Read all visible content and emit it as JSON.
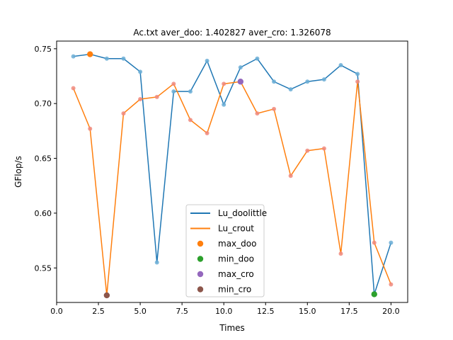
{
  "chart_data": {
    "type": "line",
    "title": "Ac.txt aver_doo: 1.402827 aver_cro: 1.326078",
    "xlabel": "Times",
    "ylabel": "GFlop/s",
    "xlim": [
      0,
      21
    ],
    "ylim": [
      0.5185,
      0.757
    ],
    "xticks": [
      0.0,
      2.5,
      5.0,
      7.5,
      10.0,
      12.5,
      15.0,
      17.5,
      20.0
    ],
    "xtick_labels": [
      "0.0",
      "2.5",
      "5.0",
      "7.5",
      "10.0",
      "12.5",
      "15.0",
      "17.5",
      "20.0"
    ],
    "yticks": [
      0.55,
      0.6,
      0.65,
      0.7,
      0.75
    ],
    "ytick_labels": [
      "0.55",
      "0.60",
      "0.65",
      "0.70",
      "0.75"
    ],
    "grid": false,
    "legend_position": "lower center",
    "x": [
      1,
      2,
      3,
      4,
      5,
      6,
      7,
      8,
      9,
      10,
      11,
      12,
      13,
      14,
      15,
      16,
      17,
      18,
      19,
      20
    ],
    "series": [
      {
        "name": "Lu_doolittle",
        "kind": "line",
        "color": "#1f77b4",
        "values": [
          0.743,
          0.745,
          0.741,
          0.741,
          0.729,
          0.555,
          0.711,
          0.711,
          0.739,
          0.699,
          0.733,
          0.741,
          0.72,
          0.713,
          0.72,
          0.722,
          0.735,
          0.727,
          0.526,
          0.573
        ]
      },
      {
        "name": "Lu_crout",
        "kind": "line",
        "color": "#ff7f0e",
        "values": [
          0.714,
          0.677,
          0.525,
          0.691,
          0.704,
          0.706,
          0.718,
          0.685,
          0.673,
          0.718,
          0.72,
          0.691,
          0.695,
          0.634,
          0.657,
          0.659,
          0.563,
          0.72,
          0.573,
          0.535
        ]
      }
    ],
    "markers": [
      {
        "name": "max_doo",
        "color": "#ff7f0e",
        "x": 2,
        "y": 0.745
      },
      {
        "name": "min_doo",
        "color": "#2ca02c",
        "x": 19,
        "y": 0.526
      },
      {
        "name": "max_cro",
        "color": "#9467bd",
        "x": 11,
        "y": 0.72
      },
      {
        "name": "min_cro",
        "color": "#8c564b",
        "x": 3,
        "y": 0.525
      }
    ]
  }
}
